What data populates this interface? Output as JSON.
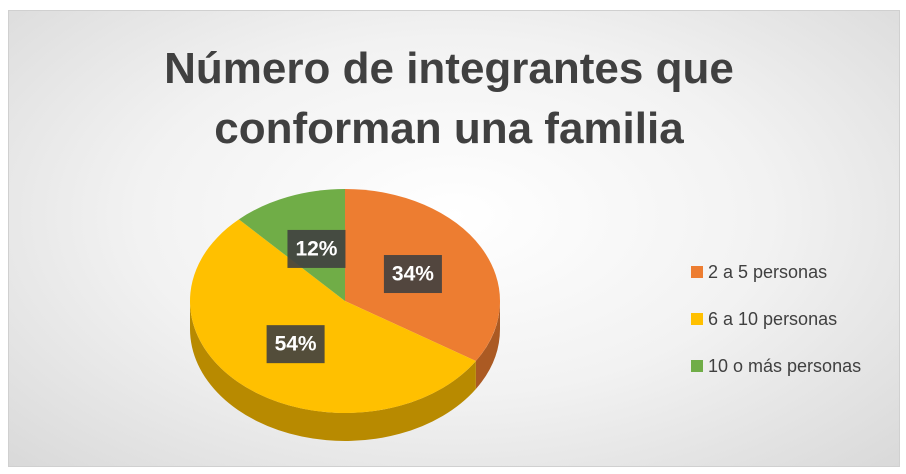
{
  "chart_data": {
    "type": "pie",
    "title": "Número de integrantes que conforman una familia",
    "categories": [
      "2 a 5 personas",
      "6 a 10 personas",
      "10 o más personas"
    ],
    "values": [
      34,
      54,
      12
    ],
    "value_labels": [
      "34%",
      "54%",
      "12%"
    ],
    "colors": [
      "#ED7D31",
      "#FFC000",
      "#70AD47"
    ],
    "legend": "right"
  }
}
